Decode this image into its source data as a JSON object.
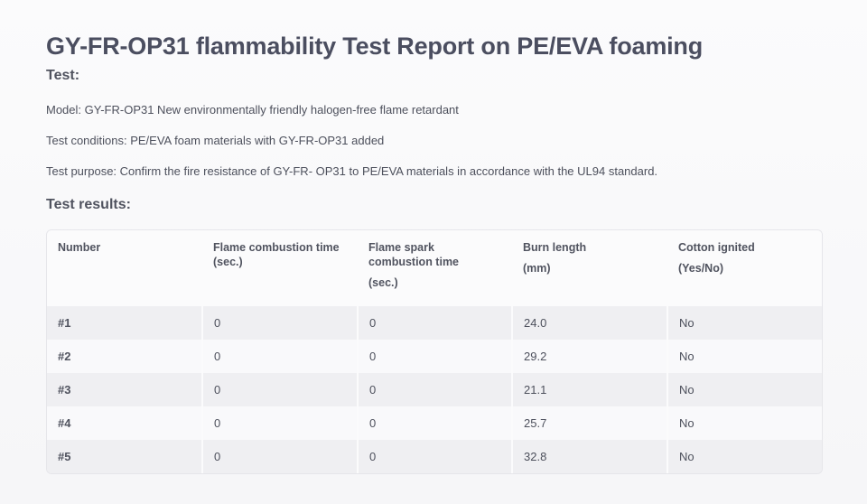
{
  "title": "GY-FR-OP31 flammability Test Report on PE/EVA foaming",
  "test_heading": "Test:",
  "paragraphs": {
    "model": "Model: GY-FR-OP31 New environmentally friendly halogen-free flame retardant",
    "conditions": "Test conditions: PE/EVA foam materials with GY-FR-OP31 added",
    "purpose": "Test purpose: Confirm the fire resistance of GY-FR- OP31 to PE/EVA materials in accordance with the UL94 standard."
  },
  "results_heading": "Test results:",
  "table": {
    "headers": {
      "number": "Number",
      "flame_time_1": "Flame combustion time",
      "flame_time_2": "(sec.)",
      "spark_1": "Flame spark",
      "spark_2": "combustion time",
      "spark_3": "(sec.)",
      "burn_1": "Burn length",
      "burn_2": "(mm)",
      "cotton_1": "Cotton ignited",
      "cotton_2": "(Yes/No)"
    },
    "rows": [
      {
        "number": "#1",
        "flame": "0",
        "spark": "0",
        "burn": "24.0",
        "cotton": "No"
      },
      {
        "number": "#2",
        "flame": "0",
        "spark": "0",
        "burn": "29.2",
        "cotton": "No"
      },
      {
        "number": "#3",
        "flame": "0",
        "spark": "0",
        "burn": "21.1",
        "cotton": "No"
      },
      {
        "number": "#4",
        "flame": "0",
        "spark": "0",
        "burn": "25.7",
        "cotton": "No"
      },
      {
        "number": "#5",
        "flame": "0",
        "spark": "0",
        "burn": "32.8",
        "cotton": "No"
      }
    ]
  }
}
